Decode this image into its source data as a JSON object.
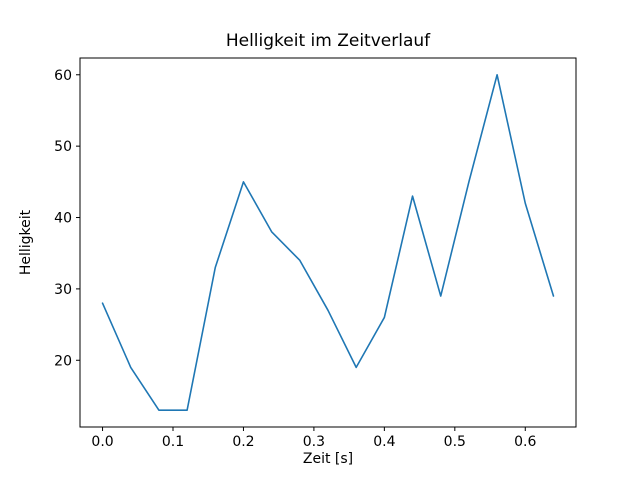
{
  "chart_data": {
    "type": "line",
    "title": "Helligkeit im Zeitverlauf",
    "xlabel": "Zeit [s]",
    "ylabel": "Helligkeit",
    "x": [
      0.0,
      0.04,
      0.08,
      0.12,
      0.16,
      0.2,
      0.24,
      0.28,
      0.32,
      0.36,
      0.4,
      0.44,
      0.48,
      0.52,
      0.56,
      0.6,
      0.64
    ],
    "y": [
      28,
      19,
      13,
      13,
      33,
      45,
      38,
      34,
      27,
      19,
      26,
      43,
      29,
      45,
      60,
      42,
      29
    ],
    "xlim": [
      -0.032,
      0.672
    ],
    "ylim": [
      10.65,
      62.35
    ],
    "xticks": [
      0.0,
      0.1,
      0.2,
      0.3,
      0.4,
      0.5,
      0.6
    ],
    "xtick_labels": [
      "0.0",
      "0.1",
      "0.2",
      "0.3",
      "0.4",
      "0.5",
      "0.6"
    ],
    "yticks": [
      20,
      30,
      40,
      50,
      60
    ],
    "ytick_labels": [
      "20",
      "30",
      "40",
      "50",
      "60"
    ],
    "line_color": "#1f77b4",
    "axes_color": "#000000",
    "background_color": "#ffffff",
    "grid": false,
    "legend_position": "none"
  }
}
